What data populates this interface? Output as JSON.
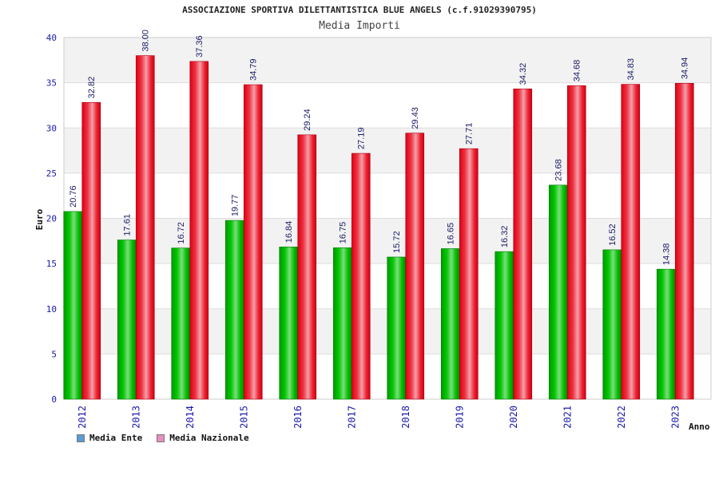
{
  "header": {
    "title": "ASSOCIAZIONE SPORTIVA DILETTANTISTICA BLUE ANGELS (c.f.91029390795)",
    "subtitle": "Media Importi"
  },
  "legend": {
    "items": [
      {
        "label": "Media Ente",
        "color": "#5b9bd5"
      },
      {
        "label": "Media Nazionale",
        "color": "#e68fc0"
      }
    ]
  },
  "chart_data": {
    "type": "bar",
    "title": "Media Importi",
    "xlabel": "Anno",
    "ylabel": "Euro",
    "ylim": [
      0,
      40
    ],
    "yticks": [
      0,
      5,
      10,
      15,
      20,
      25,
      30,
      35,
      40
    ],
    "grid": true,
    "legend_position": "bottom-left",
    "categories": [
      "2012",
      "2013",
      "2014",
      "2015",
      "2016",
      "2017",
      "2018",
      "2019",
      "2020",
      "2021",
      "2022",
      "2023"
    ],
    "series": [
      {
        "name": "Media Ente",
        "color": "#00b000",
        "values": [
          20.76,
          17.61,
          16.72,
          19.77,
          16.84,
          16.75,
          15.72,
          16.65,
          16.32,
          23.68,
          16.52,
          14.38
        ],
        "labels": [
          "20.76",
          "17.61",
          "16.72",
          "19.77",
          "16.84",
          "16.75",
          "15.72",
          "16.65",
          "16.32",
          "23.68",
          "16.52",
          "14.38"
        ]
      },
      {
        "name": "Media Nazionale",
        "color": "#ee1122",
        "values": [
          32.82,
          38.0,
          37.36,
          34.79,
          29.24,
          27.19,
          29.43,
          27.71,
          34.32,
          34.68,
          34.83,
          34.94
        ],
        "labels": [
          "32.82",
          "38.00",
          "37.36",
          "34.79",
          "29.24",
          "27.19",
          "29.43",
          "27.71",
          "34.32",
          "34.68",
          "34.83",
          "34.94"
        ]
      }
    ]
  }
}
